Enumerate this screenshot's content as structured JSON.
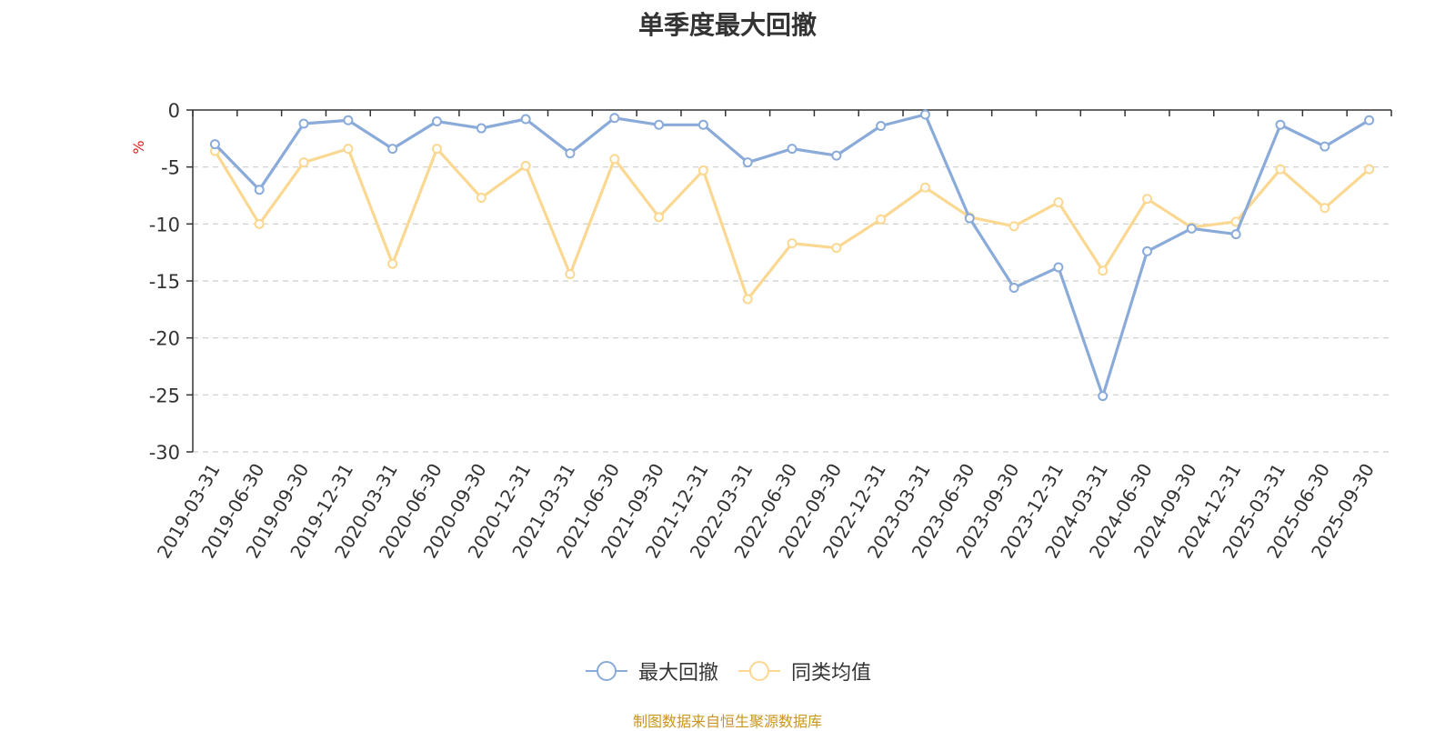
{
  "title": "单季度最大回撤",
  "source_note": "制图数据来自恒生聚源数据库",
  "colors": {
    "series_1": "#8aabd9",
    "series_2": "#fbd892",
    "y_unit": "#e02020",
    "axis": "#333333",
    "grid": "#cccccc"
  },
  "chart_data": {
    "type": "line",
    "title": "单季度最大回撤",
    "ylabel": "%",
    "xlabel": "",
    "ylim": [
      -30,
      0
    ],
    "yticks": [
      0,
      -5,
      -10,
      -15,
      -20,
      -25,
      -30
    ],
    "grid": "horizontal dashed",
    "legend_position": "bottom-center",
    "categories": [
      "2019-03-31",
      "2019-06-30",
      "2019-09-30",
      "2019-12-31",
      "2020-03-31",
      "2020-06-30",
      "2020-09-30",
      "2020-12-31",
      "2021-03-31",
      "2021-06-30",
      "2021-09-30",
      "2021-12-31",
      "2022-03-31",
      "2022-06-30",
      "2022-09-30",
      "2022-12-31",
      "2023-03-31",
      "2023-06-30",
      "2023-09-30",
      "2023-12-31",
      "2024-03-31",
      "2024-06-30",
      "2024-09-30",
      "2024-12-31",
      "2025-03-31",
      "2025-06-30",
      "2025-09-30"
    ],
    "series": [
      {
        "name": "最大回撤",
        "color": "#8aabd9",
        "values": [
          -3.0,
          -7.0,
          -1.2,
          -0.9,
          -3.4,
          -1.0,
          -1.6,
          -0.8,
          -3.8,
          -0.7,
          -1.3,
          -1.3,
          -4.6,
          -3.4,
          -4.0,
          -1.4,
          -0.4,
          -9.5,
          -15.6,
          -13.8,
          -25.1,
          -12.4,
          -10.4,
          -10.9,
          -1.3,
          -3.2,
          -0.9
        ]
      },
      {
        "name": "同类均值",
        "color": "#fbd892",
        "values": [
          -3.6,
          -10.0,
          -4.6,
          -3.4,
          -13.5,
          -3.4,
          -7.7,
          -4.9,
          -14.4,
          -4.3,
          -9.4,
          -5.3,
          -16.6,
          -11.7,
          -12.1,
          -9.6,
          -6.8,
          -9.4,
          -10.2,
          -8.1,
          -14.1,
          -7.8,
          -10.3,
          -9.8,
          -5.2,
          -8.6,
          -5.2
        ]
      }
    ]
  }
}
